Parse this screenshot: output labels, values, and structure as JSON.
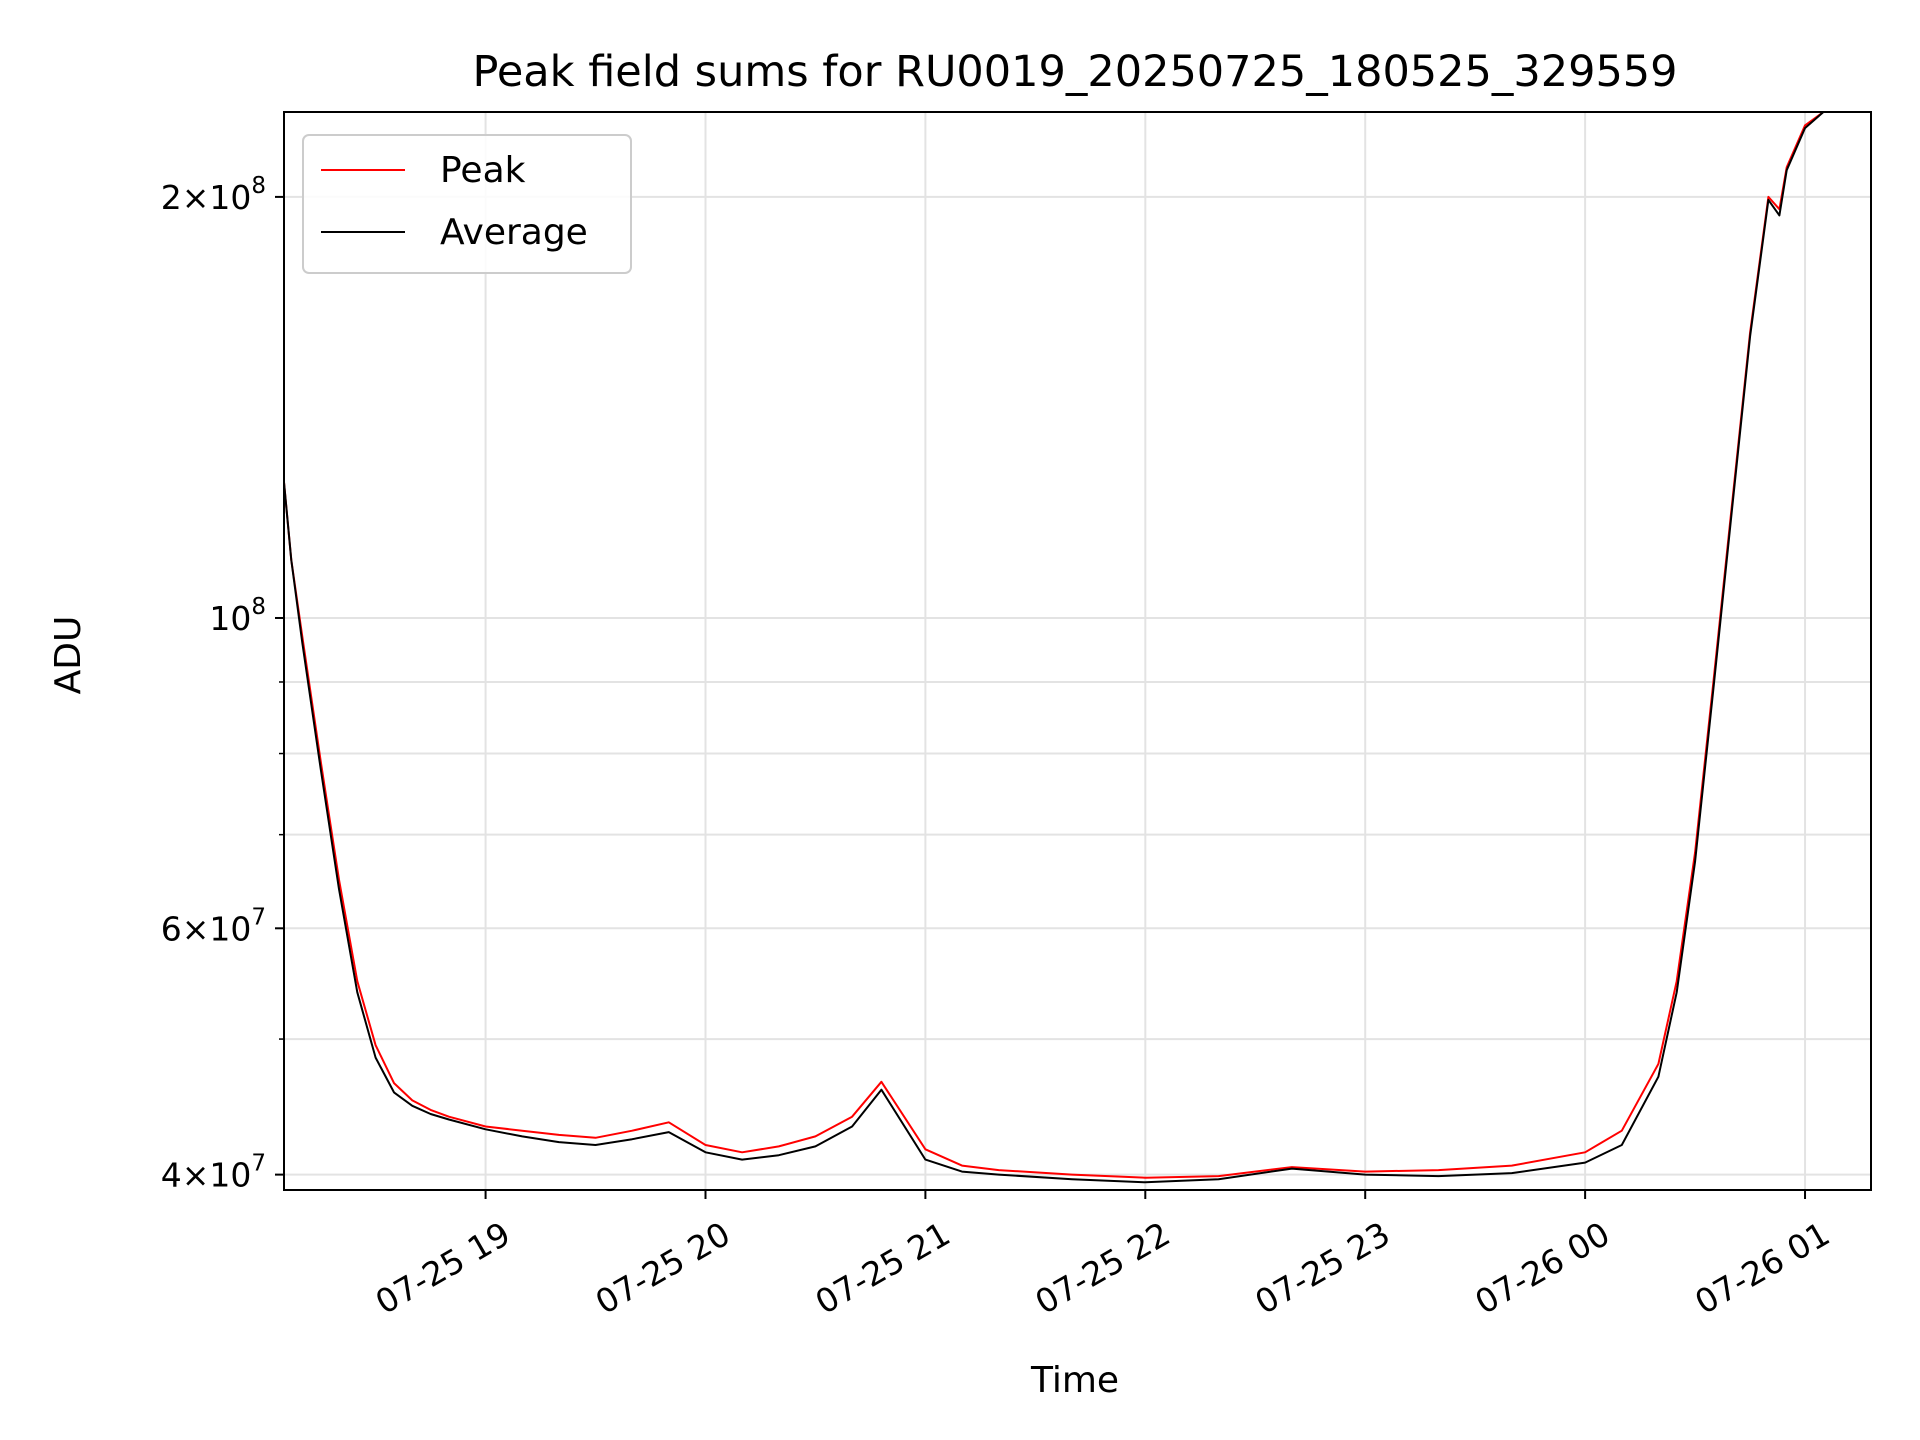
{
  "chart_data": {
    "type": "line",
    "title": "Peak field sums for RU0019_20250725_180525_329559",
    "xlabel": "Time",
    "ylabel": "ADU",
    "x_unit": "datetime",
    "y_scale": "log",
    "xlim": [
      "2025-07-25 18:05",
      "2025-07-26 01:18"
    ],
    "ylim": [
      39000000,
      230000000
    ],
    "x_ticks": [
      "07-25 19",
      "07-25 20",
      "07-25 21",
      "07-25 22",
      "07-25 23",
      "07-26 00",
      "07-26 01"
    ],
    "x_tick_values": [
      "2025-07-25 19:00",
      "2025-07-25 20:00",
      "2025-07-25 21:00",
      "2025-07-25 22:00",
      "2025-07-25 23:00",
      "2025-07-26 00:00",
      "2025-07-26 01:00"
    ],
    "y_ticks": [
      {
        "value": 40000000,
        "mantissa": "4",
        "base": "10",
        "exp": "7"
      },
      {
        "value": 60000000,
        "mantissa": "6",
        "base": "10",
        "exp": "7"
      },
      {
        "value": 100000000,
        "mantissa": "",
        "base": "10",
        "exp": "8"
      },
      {
        "value": 200000000,
        "mantissa": "2",
        "base": "10",
        "exp": "8"
      }
    ],
    "y_minor_ticks": [
      50000000,
      70000000,
      80000000,
      90000000
    ],
    "grid": true,
    "legend_position": "upper-left",
    "series": [
      {
        "name": "Peak",
        "color": "#ff0000",
        "x": [
          "2025-07-25 18:05",
          "2025-07-25 18:07",
          "2025-07-25 18:10",
          "2025-07-25 18:15",
          "2025-07-25 18:20",
          "2025-07-25 18:25",
          "2025-07-25 18:30",
          "2025-07-25 18:35",
          "2025-07-25 18:40",
          "2025-07-25 18:45",
          "2025-07-25 18:50",
          "2025-07-25 19:00",
          "2025-07-25 19:10",
          "2025-07-25 19:20",
          "2025-07-25 19:30",
          "2025-07-25 19:40",
          "2025-07-25 19:50",
          "2025-07-25 20:00",
          "2025-07-25 20:10",
          "2025-07-25 20:20",
          "2025-07-25 20:30",
          "2025-07-25 20:40",
          "2025-07-25 20:48",
          "2025-07-25 21:00",
          "2025-07-25 21:10",
          "2025-07-25 21:20",
          "2025-07-25 21:40",
          "2025-07-25 22:00",
          "2025-07-25 22:20",
          "2025-07-25 22:40",
          "2025-07-25 23:00",
          "2025-07-25 23:20",
          "2025-07-25 23:40",
          "2025-07-26 00:00",
          "2025-07-26 00:10",
          "2025-07-26 00:20",
          "2025-07-26 00:25",
          "2025-07-26 00:30",
          "2025-07-26 00:35",
          "2025-07-26 00:40",
          "2025-07-26 00:45",
          "2025-07-26 00:50",
          "2025-07-26 00:53",
          "2025-07-26 00:55",
          "2025-07-26 01:00",
          "2025-07-26 01:05",
          "2025-07-26 01:18"
        ],
        "values": [
          125000000,
          110000000,
          97000000,
          79000000,
          65000000,
          55000000,
          49500000,
          46500000,
          45200000,
          44500000,
          44000000,
          43300000,
          43000000,
          42700000,
          42500000,
          43000000,
          43600000,
          42000000,
          41500000,
          41900000,
          42600000,
          44000000,
          46600000,
          41700000,
          40600000,
          40300000,
          40000000,
          39800000,
          39900000,
          40500000,
          40200000,
          40300000,
          40600000,
          41500000,
          43000000,
          48000000,
          55000000,
          68000000,
          90000000,
          120000000,
          160000000,
          200000000,
          196000000,
          210000000,
          225000000,
          230000000,
          230000000
        ]
      },
      {
        "name": "Average",
        "color": "#000000",
        "x": [
          "2025-07-25 18:05",
          "2025-07-25 18:07",
          "2025-07-25 18:10",
          "2025-07-25 18:15",
          "2025-07-25 18:20",
          "2025-07-25 18:25",
          "2025-07-25 18:30",
          "2025-07-25 18:35",
          "2025-07-25 18:40",
          "2025-07-25 18:45",
          "2025-07-25 18:50",
          "2025-07-25 19:00",
          "2025-07-25 19:10",
          "2025-07-25 19:20",
          "2025-07-25 19:30",
          "2025-07-25 19:40",
          "2025-07-25 19:50",
          "2025-07-25 20:00",
          "2025-07-25 20:10",
          "2025-07-25 20:20",
          "2025-07-25 20:30",
          "2025-07-25 20:40",
          "2025-07-25 20:48",
          "2025-07-25 21:00",
          "2025-07-25 21:10",
          "2025-07-25 21:20",
          "2025-07-25 21:40",
          "2025-07-25 22:00",
          "2025-07-25 22:20",
          "2025-07-25 22:40",
          "2025-07-25 23:00",
          "2025-07-25 23:20",
          "2025-07-25 23:40",
          "2025-07-26 00:00",
          "2025-07-26 00:10",
          "2025-07-26 00:20",
          "2025-07-26 00:25",
          "2025-07-26 00:30",
          "2025-07-26 00:35",
          "2025-07-26 00:40",
          "2025-07-26 00:45",
          "2025-07-26 00:50",
          "2025-07-26 00:53",
          "2025-07-26 00:55",
          "2025-07-26 01:00",
          "2025-07-26 01:05",
          "2025-07-26 01:18"
        ],
        "values": [
          125000000,
          110000000,
          96000000,
          78000000,
          64000000,
          54000000,
          48500000,
          45800000,
          44800000,
          44200000,
          43800000,
          43100000,
          42600000,
          42200000,
          42000000,
          42400000,
          42900000,
          41500000,
          41000000,
          41300000,
          41900000,
          43300000,
          46000000,
          41000000,
          40200000,
          40000000,
          39700000,
          39500000,
          39700000,
          40400000,
          40000000,
          39900000,
          40100000,
          40800000,
          42000000,
          47000000,
          54000000,
          67000000,
          89000000,
          119000000,
          159000000,
          199000000,
          194000000,
          209000000,
          224000000,
          230000000,
          230000000
        ]
      }
    ]
  }
}
